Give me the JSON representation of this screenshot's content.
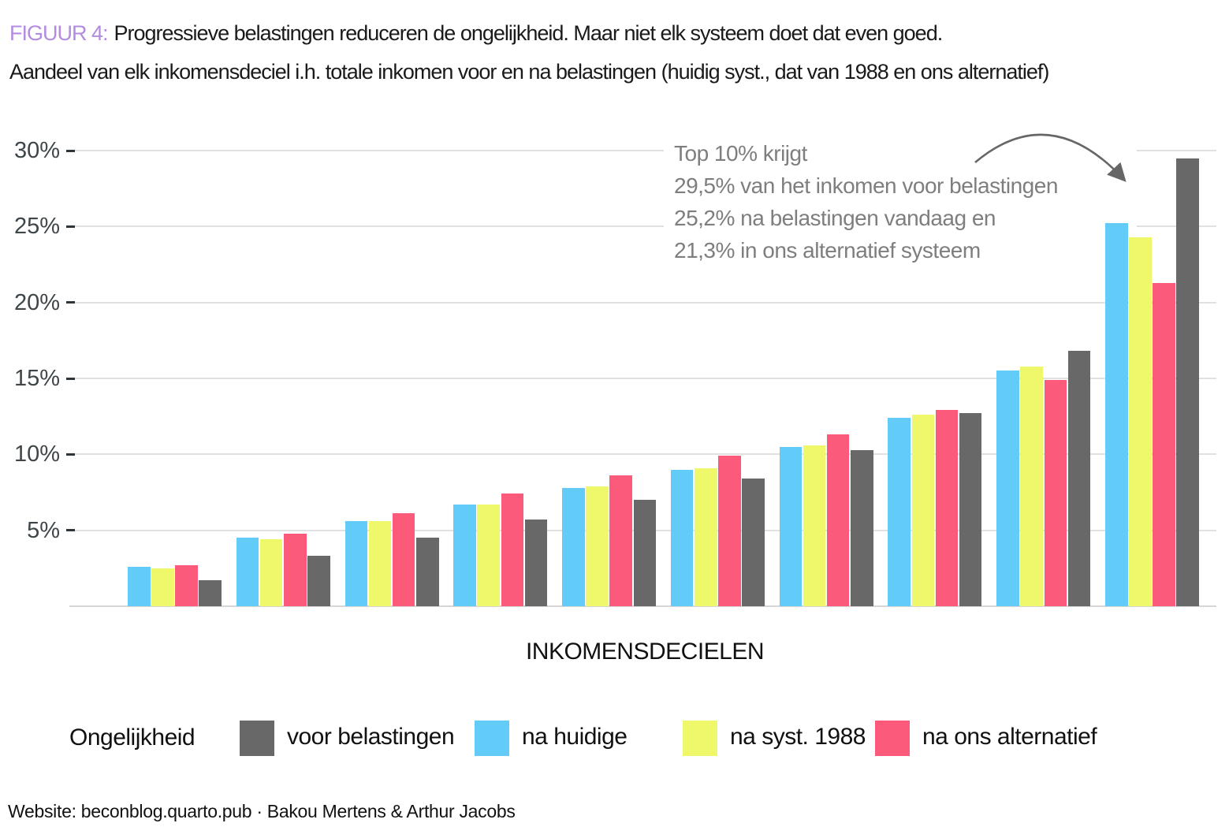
{
  "title": {
    "prefix": "FIGUUR 4:",
    "line1": "Progressieve belastingen reduceren de ongelijkheid. Maar niet elk systeem doet dat even goed.",
    "line2": "Aandeel van elk inkomensdeciel i.h. totale inkomen voor en na belastingen (huidig syst., dat van 1988 en ons alternatief)"
  },
  "annotation": {
    "lines": [
      "Top 10% krijgt",
      "29,5% van het inkomen voor belastingen",
      "25,2% na belastingen vandaag en",
      "21,3% in ons alternatief systeem"
    ]
  },
  "chart_data": {
    "type": "bar",
    "xlabel": "INKOMENSDECIELEN",
    "ylabel": "",
    "categories": [
      1,
      2,
      3,
      4,
      5,
      6,
      7,
      8,
      9,
      10
    ],
    "x_tick_labels_visible": false,
    "y_tick_values": [
      5,
      10,
      15,
      20,
      25,
      30
    ],
    "y_tick_labels": [
      "5%",
      "10%",
      "15%",
      "20%",
      "25%",
      "30%"
    ],
    "ylim": [
      0,
      30
    ],
    "grid": "horizontal",
    "legend_title": "Ongelijkheid",
    "legend_position": "bottom",
    "series": [
      {
        "name": "voor belastingen",
        "color": "#686868",
        "values": [
          1.7,
          3.3,
          4.5,
          5.7,
          7.0,
          8.4,
          10.3,
          12.7,
          16.8,
          29.5
        ]
      },
      {
        "name": "na huidige",
        "color": "#63CBF7",
        "values": [
          2.6,
          4.5,
          5.6,
          6.7,
          7.8,
          9.0,
          10.5,
          12.4,
          15.5,
          25.2
        ]
      },
      {
        "name": "na syst. 1988",
        "color": "#EFF76B",
        "values": [
          2.5,
          4.4,
          5.6,
          6.7,
          7.9,
          9.1,
          10.6,
          12.6,
          15.8,
          24.3
        ]
      },
      {
        "name": "na ons alternatief",
        "color": "#FB5A7B",
        "values": [
          2.7,
          4.8,
          6.1,
          7.4,
          8.6,
          9.9,
          11.3,
          12.9,
          14.9,
          21.3
        ]
      }
    ],
    "bar_draw_order": [
      "na huidige",
      "na syst. 1988",
      "na ons alternatief",
      "voor belastingen"
    ]
  },
  "footer": {
    "text": "Website: beconblog.quarto.pub · Bakou Mertens & Arthur Jacobs"
  },
  "colors": {
    "title_prefix": "#B38BE0",
    "annotation_text": "#7E7E7E",
    "axis_text": "#3E4649",
    "gridline": "#E1E1E1",
    "arrow": "#666666"
  }
}
